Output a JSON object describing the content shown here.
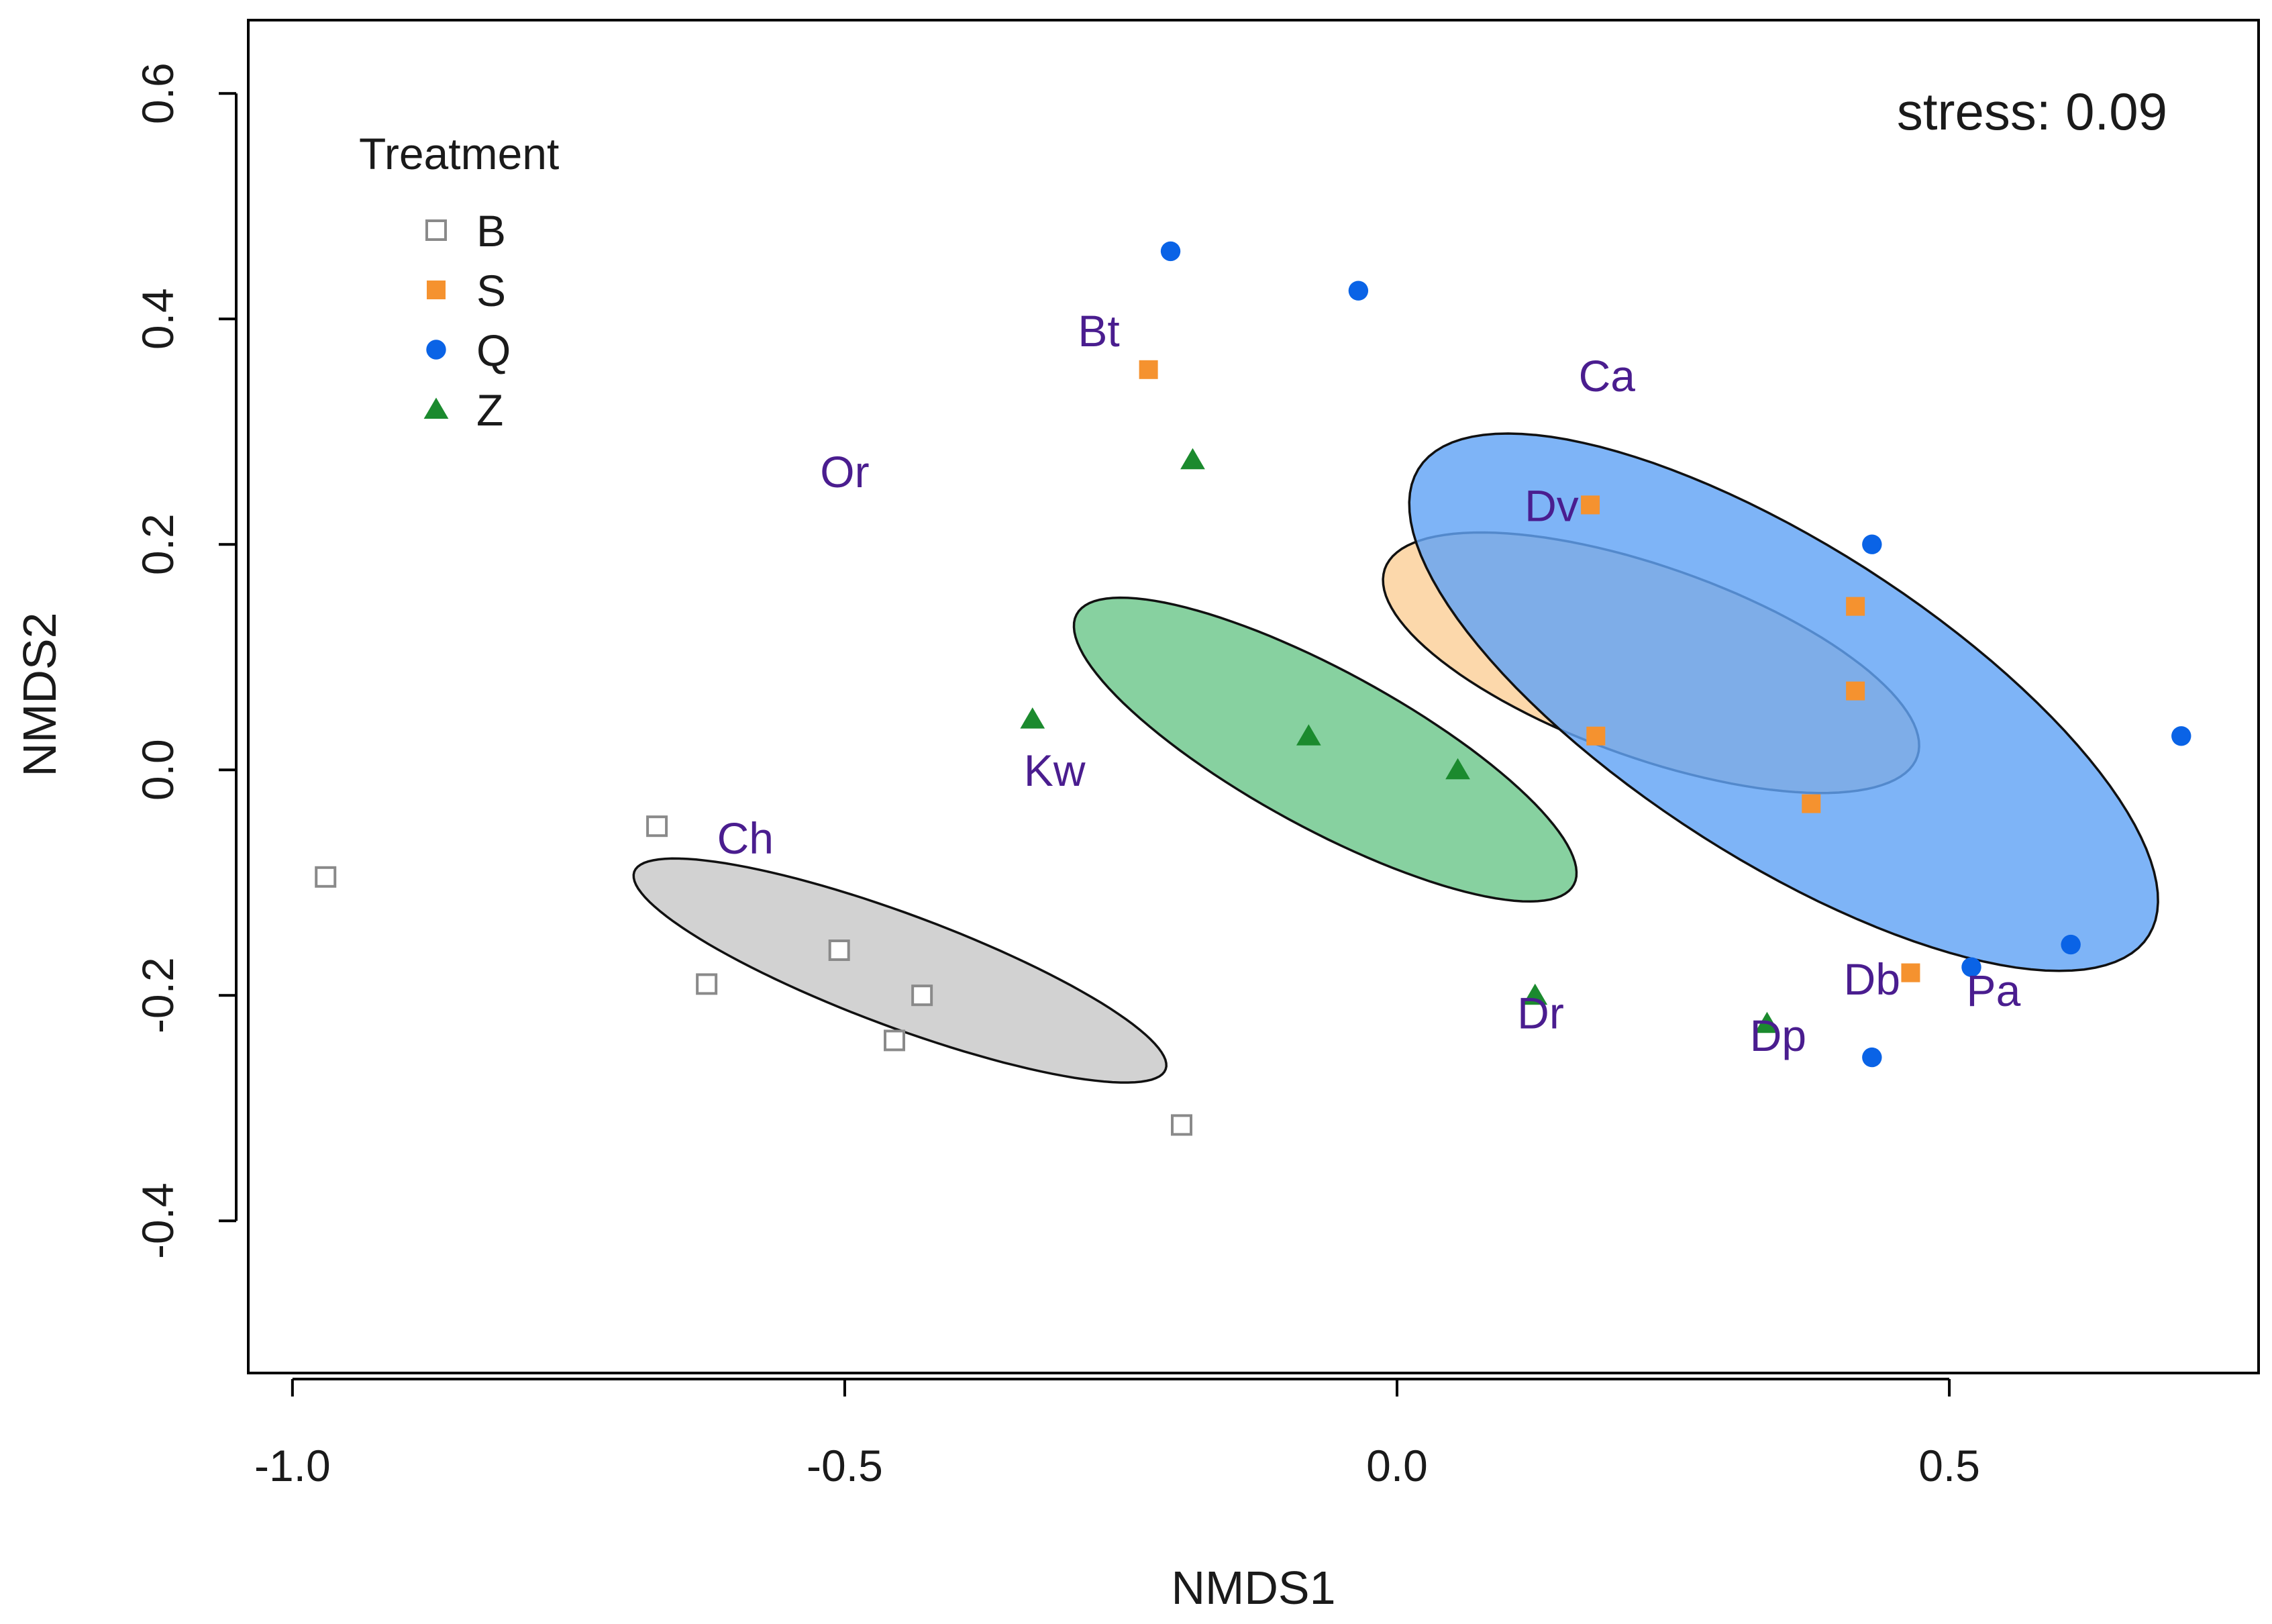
{
  "chart_data": {
    "type": "scatter",
    "title": "",
    "xlabel": "NMDS1",
    "ylabel": "NMDS2",
    "xlim": [
      -1.04,
      0.78
    ],
    "ylim": [
      -0.535,
      0.665
    ],
    "x_ticks": [
      -1.0,
      -0.5,
      0.0,
      0.5
    ],
    "x_tick_labels": [
      "-1.0",
      "-0.5",
      "0.0",
      "0.5"
    ],
    "y_ticks": [
      -0.4,
      -0.2,
      0.0,
      0.2,
      0.4,
      0.6
    ],
    "y_tick_labels": [
      "-0.4",
      "-0.2",
      "0.0",
      "0.2",
      "0.4",
      "0.6"
    ],
    "grid": false,
    "annotation": "stress: 0.09",
    "legend": {
      "title": "Treatment",
      "position": "top-left",
      "entries": [
        "B",
        "S",
        "Q",
        "Z"
      ]
    },
    "series": [
      {
        "name": "B",
        "marker": "open-square",
        "color": "#8a8a8a",
        "points": [
          {
            "x": -0.97,
            "y": -0.095
          },
          {
            "x": -0.67,
            "y": -0.05
          },
          {
            "x": -0.625,
            "y": -0.19
          },
          {
            "x": -0.505,
            "y": -0.16
          },
          {
            "x": -0.455,
            "y": -0.24
          },
          {
            "x": -0.43,
            "y": -0.2
          },
          {
            "x": -0.195,
            "y": -0.315
          }
        ],
        "ellipse": {
          "cx": -0.45,
          "cy": -0.178,
          "rx": 0.256,
          "ry": 0.05,
          "angle_deg": -20,
          "fill": "#c8c8c8"
        }
      },
      {
        "name": "S",
        "marker": "filled-square",
        "color": "#f5922f",
        "points": [
          {
            "x": -0.225,
            "y": 0.355
          },
          {
            "x": 0.175,
            "y": 0.235
          },
          {
            "x": 0.415,
            "y": 0.145
          },
          {
            "x": 0.415,
            "y": 0.07
          },
          {
            "x": 0.18,
            "y": 0.03
          },
          {
            "x": 0.375,
            "y": -0.03
          },
          {
            "x": 0.465,
            "y": -0.18
          }
        ],
        "ellipse": {
          "cx": 0.23,
          "cy": 0.095,
          "rx": 0.255,
          "ry": 0.085,
          "angle_deg": -19,
          "fill": "#fbcf98"
        }
      },
      {
        "name": "Q",
        "marker": "filled-circle",
        "color": "#0a63e6",
        "points": [
          {
            "x": -0.205,
            "y": 0.46
          },
          {
            "x": -0.035,
            "y": 0.425
          },
          {
            "x": 0.43,
            "y": 0.2
          },
          {
            "x": 0.71,
            "y": 0.03
          },
          {
            "x": 0.61,
            "y": -0.155
          },
          {
            "x": 0.52,
            "y": -0.175
          },
          {
            "x": 0.43,
            "y": -0.255
          }
        ],
        "ellipse": {
          "cx": 0.35,
          "cy": 0.06,
          "rx": 0.39,
          "ry": 0.14,
          "angle_deg": -32,
          "fill": "#62a3f5"
        }
      },
      {
        "name": "Z",
        "marker": "filled-triangle",
        "color": "#1b8a2e",
        "points": [
          {
            "x": -0.185,
            "y": 0.275
          },
          {
            "x": -0.33,
            "y": 0.045
          },
          {
            "x": -0.08,
            "y": 0.03
          },
          {
            "x": 0.055,
            "y": 0.0
          },
          {
            "x": 0.125,
            "y": -0.2
          },
          {
            "x": 0.335,
            "y": -0.225
          }
        ],
        "ellipse": {
          "cx": -0.065,
          "cy": 0.018,
          "rx": 0.255,
          "ry": 0.07,
          "angle_deg": -28,
          "fill": "#6dc78b"
        }
      }
    ],
    "site_labels": [
      {
        "text": "Bt",
        "x": -0.27,
        "y": 0.39
      },
      {
        "text": "Ca",
        "x": 0.19,
        "y": 0.35
      },
      {
        "text": "Or",
        "x": -0.5,
        "y": 0.265
      },
      {
        "text": "Dv",
        "x": 0.14,
        "y": 0.235
      },
      {
        "text": "Kw",
        "x": -0.31,
        "y": 0.0
      },
      {
        "text": "Ch",
        "x": -0.59,
        "y": -0.06
      },
      {
        "text": "Db",
        "x": 0.43,
        "y": -0.185
      },
      {
        "text": "Pa",
        "x": 0.54,
        "y": -0.195
      },
      {
        "text": "Dr",
        "x": 0.13,
        "y": -0.215
      },
      {
        "text": "Dp",
        "x": 0.345,
        "y": -0.235
      }
    ],
    "site_label_color": "#4a1d8f"
  }
}
